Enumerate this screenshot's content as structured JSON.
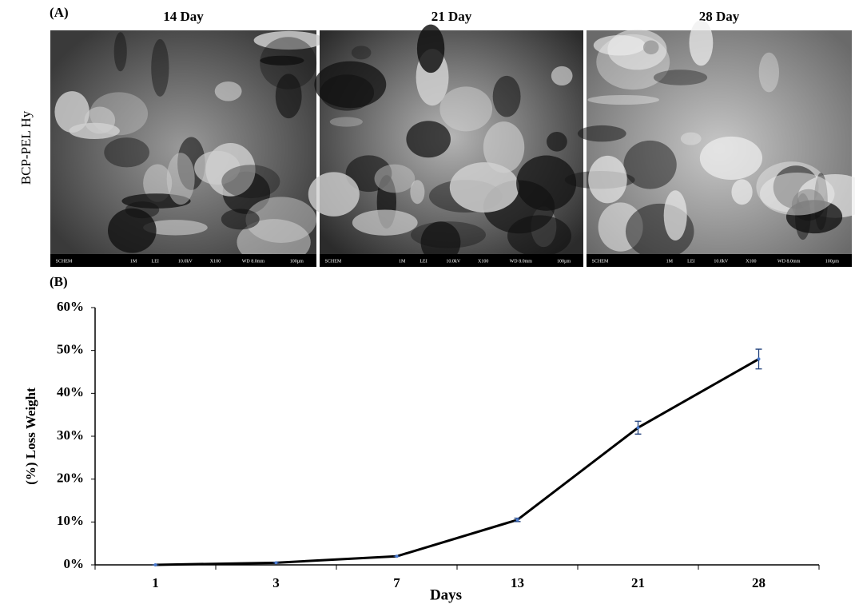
{
  "panel_a": {
    "label": "(A)",
    "row_label": "BCP-PEL Hy",
    "columns": [
      "14 Day",
      "21 Day",
      "28 Day"
    ],
    "sem_info": [
      "SCHEM",
      "1M",
      "LEI",
      "10.0kV",
      "X100",
      "WD 8.0mm",
      "100µm"
    ]
  },
  "chart_data": {
    "type": "line",
    "panel_label": "(B)",
    "x_label": "Days",
    "y_label": "(%) Loss Weight",
    "categories": [
      "1",
      "3",
      "7",
      "13",
      "21",
      "28"
    ],
    "values": [
      0,
      0.5,
      2,
      10.5,
      32,
      48
    ],
    "errors": [
      0,
      0,
      0,
      0.4,
      1.5,
      2.3
    ],
    "color": "#000000",
    "marker_color": "#4a7bd0",
    "error_color": "#1f3f7a",
    "ylim": [
      0,
      60
    ],
    "yticks": [
      {
        "value": 0,
        "label": "0%"
      },
      {
        "value": 10,
        "label": "10%"
      },
      {
        "value": 20,
        "label": "20%"
      },
      {
        "value": 30,
        "label": "30%"
      },
      {
        "value": 40,
        "label": "40%"
      },
      {
        "value": 50,
        "label": "50%"
      },
      {
        "value": 60,
        "label": "60%"
      }
    ],
    "grid": false
  }
}
